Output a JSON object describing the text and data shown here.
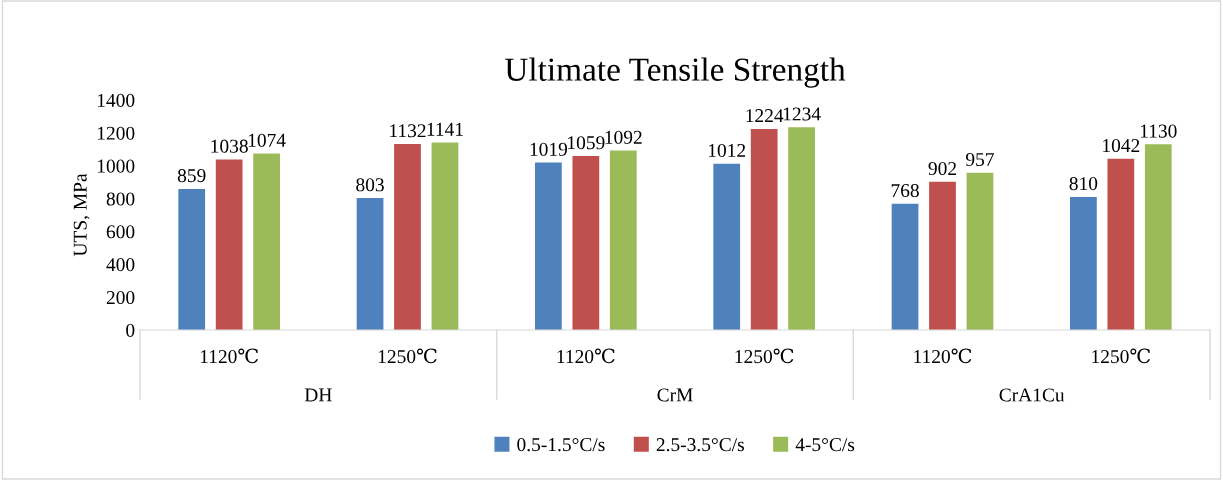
{
  "chart_data": {
    "type": "bar",
    "title": "Ultimate Tensile Strength",
    "ylabel": "UTS, MPa",
    "categories": [
      "1120℃",
      "1250℃",
      "1120℃",
      "1250℃",
      "1120℃",
      "1250℃"
    ],
    "annotations": [
      "DH",
      "CrM",
      "CrA1Cu"
    ],
    "series": [
      {
        "name": "0.5-1.5°C/s",
        "color": "#4f81bd",
        "values": [
          859,
          803,
          1019,
          1012,
          768,
          810
        ]
      },
      {
        "name": "2.5-3.5°C/s",
        "color": "#c0504d",
        "values": [
          1038,
          1132,
          1059,
          1224,
          902,
          1042
        ]
      },
      {
        "name": "4-5°C/s",
        "color": "#9bbb59",
        "values": [
          1074,
          1141,
          1092,
          1234,
          957,
          1130
        ]
      }
    ],
    "ylim": [
      0,
      1400
    ],
    "yticks": [
      0,
      200,
      400,
      600,
      800,
      1000,
      1200,
      1400
    ],
    "data_labels": true,
    "legend": "bottom",
    "grid": false
  }
}
